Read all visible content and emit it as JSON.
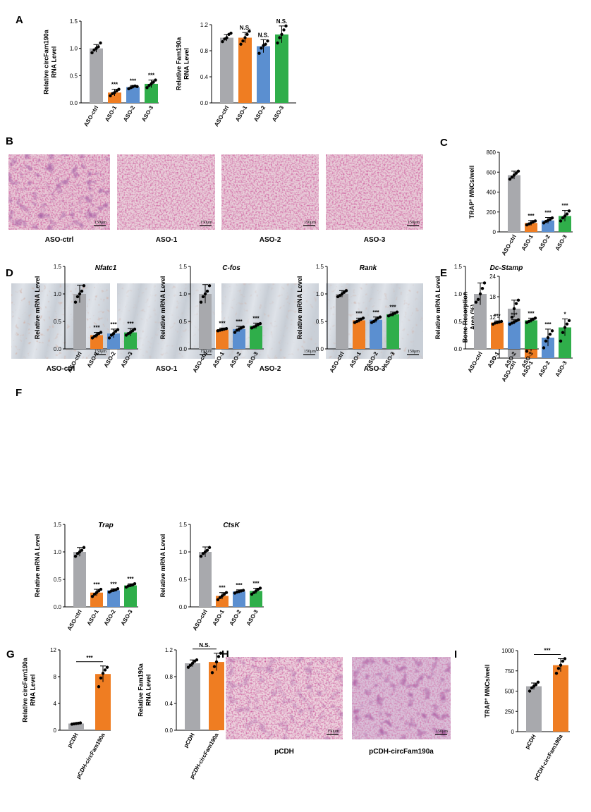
{
  "panel_labels": [
    "A",
    "B",
    "C",
    "D",
    "E",
    "F",
    "G",
    "H",
    "I"
  ],
  "colors": {
    "ASO-ctrl": "#a8a9ad",
    "ASO-1": "#ef7d22",
    "ASO-2": "#5b8fd0",
    "ASO-3": "#2fae4a",
    "pCDH": "#a8a9ad",
    "pCDH-circFam190a": "#ef7d22"
  },
  "images": {
    "B": {
      "captions": [
        "ASO-ctrl",
        "ASO-1",
        "ASO-2",
        "ASO-3"
      ],
      "scale": "150μm"
    },
    "D": {
      "captions": [
        "ASO-ctrl",
        "ASO-1",
        "ASO-2",
        "ASO-3"
      ],
      "scale": "150μm"
    },
    "H": {
      "captions": [
        "pCDH",
        "pCDH-circFam190a"
      ],
      "scale": "150μm"
    }
  },
  "chart_data": [
    {
      "id": "A1",
      "type": "bar",
      "categories": [
        "ASO-ctrl",
        "ASO-1",
        "ASO-2",
        "ASO-3"
      ],
      "values": [
        1.0,
        0.19,
        0.29,
        0.35
      ],
      "errors": [
        0.07,
        0.06,
        0.03,
        0.07
      ],
      "points": [
        [
          0.92,
          0.97,
          1.0,
          1.03,
          1.1
        ],
        [
          0.13,
          0.17,
          0.19,
          0.22,
          0.25
        ],
        [
          0.26,
          0.28,
          0.3,
          0.31,
          0.3
        ],
        [
          0.28,
          0.32,
          0.35,
          0.38,
          0.42
        ]
      ],
      "significance": [
        "",
        "***",
        "***",
        "***"
      ],
      "ylabel": "Relative circFam190a\nRNA Level",
      "ylim": [
        0,
        1.5
      ],
      "yticks": [
        "0.0",
        "0.5",
        "1.0",
        "1.5"
      ]
    },
    {
      "id": "A2",
      "type": "bar",
      "categories": [
        "ASO-ctrl",
        "ASO-1",
        "ASO-2",
        "ASO-3"
      ],
      "values": [
        1.0,
        1.0,
        0.87,
        1.05
      ],
      "errors": [
        0.05,
        0.08,
        0.1,
        0.13
      ],
      "points": [
        [
          0.94,
          0.98,
          1.0,
          1.05,
          1.07
        ],
        [
          0.9,
          0.95,
          1.0,
          1.05,
          1.1
        ],
        [
          0.76,
          0.84,
          0.88,
          0.9,
          0.95
        ],
        [
          0.92,
          1.0,
          1.05,
          1.12,
          1.18
        ]
      ],
      "significance": [
        "",
        "N.S.",
        "N.S.",
        "N.S."
      ],
      "ylabel": "Relative Fam190a\nRNA Level",
      "ylim": [
        0,
        1.2
      ],
      "yticks": [
        "0.0",
        "0.4",
        "0.8",
        "1.2"
      ]
    },
    {
      "id": "C",
      "type": "bar",
      "categories": [
        "ASO-ctrl",
        "ASO-1",
        "ASO-2",
        "ASO-3"
      ],
      "values": [
        570,
        90,
        115,
        160
      ],
      "errors": [
        40,
        25,
        30,
        55
      ],
      "points": [
        [
          530,
          550,
          570,
          590,
          610
        ],
        [
          70,
          80,
          90,
          100,
          110
        ],
        [
          90,
          105,
          115,
          125,
          140
        ],
        [
          110,
          140,
          160,
          180,
          210
        ]
      ],
      "significance": [
        "",
        "***",
        "***",
        "***"
      ],
      "ylabel": "TRAP+ MNCs/well",
      "ylim": [
        0,
        800
      ],
      "yticks": [
        "0",
        "200",
        "400",
        "600",
        "800"
      ]
    },
    {
      "id": "E",
      "type": "bar",
      "categories": [
        "ASO-ctrl",
        "ASO-1",
        "ASO-2",
        "ASO-3"
      ],
      "values": [
        14.5,
        3.5,
        6.0,
        9.0
      ],
      "errors": [
        2.5,
        1.5,
        2.5,
        2.5
      ],
      "points": [
        [
          8,
          12,
          14.5,
          16,
          17
        ],
        [
          2,
          3,
          3.5,
          4,
          5
        ],
        [
          3,
          5,
          6,
          7,
          8
        ],
        [
          5,
          7.5,
          9,
          10,
          11
        ]
      ],
      "significance": [
        "",
        "***",
        "***",
        "*"
      ],
      "ylabel": "Bone Resorption\nArea (%)",
      "ylim": [
        0,
        24
      ],
      "yticks": [
        "0",
        "6",
        "12",
        "18",
        "24"
      ]
    },
    {
      "id": "F1",
      "type": "bar",
      "title": "Nfatc1",
      "categories": [
        "ASO-ctrl",
        "ASO-1",
        "ASO-2",
        "ASO-3"
      ],
      "values": [
        1.0,
        0.25,
        0.28,
        0.3
      ],
      "errors": [
        0.16,
        0.05,
        0.08,
        0.07
      ],
      "points": [
        [
          0.85,
          0.95,
          1.0,
          1.05,
          1.15
        ],
        [
          0.2,
          0.23,
          0.25,
          0.28,
          0.3
        ],
        [
          0.2,
          0.25,
          0.28,
          0.32,
          0.35
        ],
        [
          0.25,
          0.28,
          0.3,
          0.33,
          0.36
        ]
      ],
      "significance": [
        "",
        "***",
        "***",
        "***"
      ],
      "ylabel": "Relative mRNA Level",
      "ylim": [
        0,
        1.5
      ],
      "yticks": [
        "0.0",
        "0.5",
        "1.0",
        "1.5"
      ]
    },
    {
      "id": "F2",
      "type": "bar",
      "title": "C-fos",
      "categories": [
        "ASO-ctrl",
        "ASO-1",
        "ASO-2",
        "ASO-3"
      ],
      "values": [
        1.0,
        0.35,
        0.36,
        0.42
      ],
      "errors": [
        0.17,
        0.03,
        0.05,
        0.05
      ],
      "points": [
        [
          0.85,
          0.95,
          1.0,
          1.05,
          1.15
        ],
        [
          0.33,
          0.34,
          0.35,
          0.36,
          0.37
        ],
        [
          0.3,
          0.34,
          0.36,
          0.38,
          0.4
        ],
        [
          0.38,
          0.4,
          0.42,
          0.44,
          0.46
        ]
      ],
      "significance": [
        "",
        "***",
        "***",
        "***"
      ],
      "ylabel": "Relative mRNA Level",
      "ylim": [
        0,
        1.5
      ],
      "yticks": [
        "0.0",
        "0.5",
        "1.0",
        "1.5"
      ]
    },
    {
      "id": "F3",
      "type": "bar",
      "title": "Rank",
      "categories": [
        "ASO-ctrl",
        "ASO-1",
        "ASO-2",
        "ASO-3"
      ],
      "values": [
        1.0,
        0.52,
        0.53,
        0.63
      ],
      "errors": [
        0.06,
        0.04,
        0.05,
        0.04
      ],
      "points": [
        [
          0.95,
          0.97,
          1.0,
          1.03,
          1.06
        ],
        [
          0.48,
          0.5,
          0.52,
          0.54,
          0.56
        ],
        [
          0.48,
          0.5,
          0.53,
          0.56,
          0.58
        ],
        [
          0.6,
          0.62,
          0.63,
          0.65,
          0.67
        ]
      ],
      "significance": [
        "",
        "***",
        "***",
        "***"
      ],
      "ylabel": "Relative mRNA Level",
      "ylim": [
        0,
        1.5
      ],
      "yticks": [
        "0.0",
        "0.5",
        "1.0",
        "1.5"
      ]
    },
    {
      "id": "F4",
      "type": "bar",
      "title": "Dc-Stamp",
      "categories": [
        "ASO-ctrl",
        "ASO-1",
        "ASO-2",
        "ASO-3"
      ],
      "values": [
        1.0,
        0.48,
        0.49,
        0.52
      ],
      "errors": [
        0.2,
        0.03,
        0.04,
        0.04
      ],
      "points": [
        [
          0.85,
          0.9,
          1.0,
          1.1,
          1.2
        ],
        [
          0.45,
          0.47,
          0.48,
          0.49,
          0.5
        ],
        [
          0.45,
          0.47,
          0.49,
          0.51,
          0.53
        ],
        [
          0.48,
          0.5,
          0.52,
          0.54,
          0.56
        ]
      ],
      "significance": [
        "",
        "***",
        "***",
        "***"
      ],
      "ylabel": "Relative mRNA Level",
      "ylim": [
        0,
        1.5
      ],
      "yticks": [
        "0.0",
        "0.5",
        "1.0",
        "1.5"
      ]
    },
    {
      "id": "F5",
      "type": "bar",
      "title": "Trap",
      "categories": [
        "ASO-ctrl",
        "ASO-1",
        "ASO-2",
        "ASO-3"
      ],
      "values": [
        1.0,
        0.26,
        0.3,
        0.39
      ],
      "errors": [
        0.08,
        0.06,
        0.03,
        0.03
      ],
      "points": [
        [
          0.92,
          0.97,
          1.0,
          1.03,
          1.08
        ],
        [
          0.19,
          0.23,
          0.26,
          0.29,
          0.32
        ],
        [
          0.27,
          0.29,
          0.3,
          0.31,
          0.33
        ],
        [
          0.36,
          0.38,
          0.39,
          0.4,
          0.42
        ]
      ],
      "significance": [
        "",
        "***",
        "***",
        "***"
      ],
      "ylabel": "Relative mRNA Level",
      "ylim": [
        0,
        1.5
      ],
      "yticks": [
        "0.0",
        "0.5",
        "1.0",
        "1.5"
      ]
    },
    {
      "id": "F6",
      "type": "bar",
      "title": "CtsK",
      "categories": [
        "ASO-ctrl",
        "ASO-1",
        "ASO-2",
        "ASO-3"
      ],
      "values": [
        1.0,
        0.2,
        0.28,
        0.29
      ],
      "errors": [
        0.09,
        0.06,
        0.03,
        0.05
      ],
      "points": [
        [
          0.92,
          0.97,
          1.0,
          1.03,
          1.08
        ],
        [
          0.13,
          0.17,
          0.2,
          0.23,
          0.26
        ],
        [
          0.25,
          0.27,
          0.28,
          0.29,
          0.3
        ],
        [
          0.23,
          0.26,
          0.29,
          0.32,
          0.34
        ]
      ],
      "significance": [
        "",
        "***",
        "***",
        "***"
      ],
      "ylabel": "Relative mRNA Level",
      "ylim": [
        0,
        1.5
      ],
      "yticks": [
        "0.0",
        "0.5",
        "1.0",
        "1.5"
      ]
    },
    {
      "id": "G1",
      "type": "bar",
      "categories": [
        "pCDH",
        "pCDH-circFam190a"
      ],
      "values": [
        1.0,
        8.4
      ],
      "errors": [
        0.1,
        1.2
      ],
      "points": [
        [
          0.9,
          0.95,
          1.0,
          1.05,
          1.1
        ],
        [
          6.5,
          7.8,
          8.5,
          9.0,
          9.4
        ]
      ],
      "significance": [
        "***"
      ],
      "ylabel": "Relative circFam190a\nRNA Level",
      "ylim": [
        0,
        12
      ],
      "yticks": [
        "0",
        "4",
        "8",
        "12"
      ]
    },
    {
      "id": "G2",
      "type": "bar",
      "categories": [
        "pCDH",
        "pCDH-circFam190a"
      ],
      "values": [
        1.0,
        1.02
      ],
      "errors": [
        0.05,
        0.13
      ],
      "points": [
        [
          0.94,
          0.97,
          1.0,
          1.03,
          1.05
        ],
        [
          0.86,
          0.95,
          1.02,
          1.1,
          1.15
        ]
      ],
      "significance": [
        "N.S."
      ],
      "ylabel": "Relative Fam190a\nRNA Level",
      "ylim": [
        0,
        1.2
      ],
      "yticks": [
        "0.0",
        "0.4",
        "0.8",
        "1.2"
      ]
    },
    {
      "id": "I",
      "type": "bar",
      "categories": [
        "pCDH",
        "pCDH-circFam190a"
      ],
      "values": [
        560,
        820
      ],
      "errors": [
        40,
        80
      ],
      "points": [
        [
          500,
          540,
          560,
          580,
          610
        ],
        [
          720,
          780,
          820,
          870,
          900
        ]
      ],
      "significance": [
        "***"
      ],
      "ylabel": "TRAP+ MNCs/well",
      "ylim": [
        0,
        1000
      ],
      "yticks": [
        "0",
        "250",
        "500",
        "750",
        "1000"
      ]
    }
  ]
}
